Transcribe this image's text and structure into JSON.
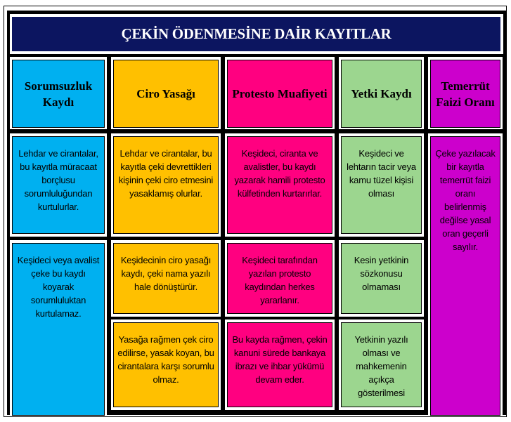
{
  "title": "ÇEKİN ÖDENMESİNE DAİR KAYITLAR",
  "colors": {
    "title_bg": "#0c1560",
    "blue": "#00b0f0",
    "orange": "#ffc000",
    "pink": "#ff0080",
    "green": "#9cd68f",
    "purple": "#cc00cc"
  },
  "columns": [
    {
      "header": "Sorumsuzluk Kaydı",
      "cells": [
        "Lehdar ve cirantalar, bu kayıtla müracaat borçlusu sorumluluğundan kurtulurlar.",
        "Keşideci veya avalist çeke bu kaydı koyarak sorumluluktan kurtulamaz."
      ]
    },
    {
      "header": "Ciro Yasağı",
      "cells": [
        "Lehdar ve cirantalar, bu kayıtla çeki devrettikleri kişinin çeki ciro etmesini yasaklamış olurlar.",
        "Keşidecinin ciro yasağı kaydı, çeki nama yazılı hale dönüştürür.",
        "Yasağa rağmen çek ciro edilirse, yasak koyan, bu cirantalara karşı sorumlu olmaz."
      ]
    },
    {
      "header": "Protesto Muafiyeti",
      "cells": [
        "Keşideci, ciranta ve avalistler, bu kaydı yazarak hamili protesto külfetinden kurtarırlar.",
        "Keşideci tarafından yazılan protesto kaydından herkes yararlanır.",
        "Bu kayda rağmen, çekin kanuni sürede bankaya ibrazı ve ihbar yükümü devam eder."
      ]
    },
    {
      "header": "Yetki Kaydı",
      "cells": [
        "Keşideci ve lehtarın tacir veya kamu tüzel kişisi olması",
        "Kesin yetkinin sözkonusu olmaması",
        "Yetkinin yazılı olması ve mahkemenin açıkça gösterilmesi"
      ]
    },
    {
      "header": "Temerrüt Faizi Oranı",
      "cells": [
        "Çeke yazılacak bir kayıtla temerrüt faizi oranı belirlenmiş değilse yasal oran geçerli sayılır."
      ]
    }
  ]
}
